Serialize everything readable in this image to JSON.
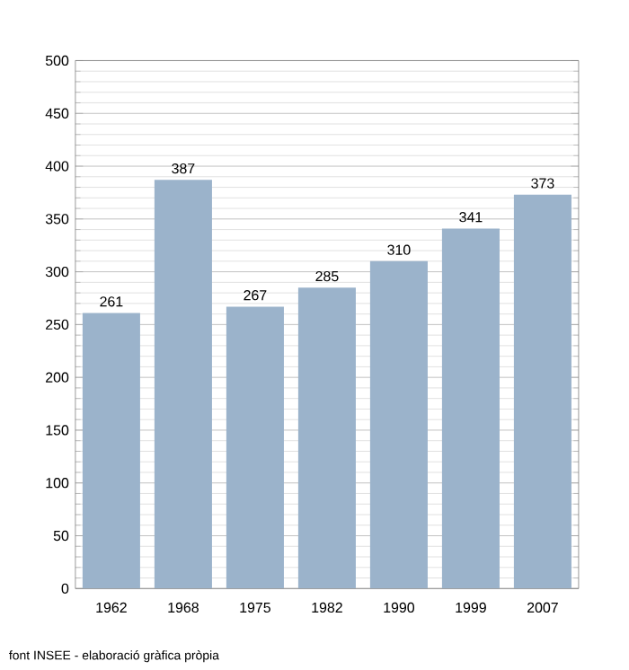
{
  "chart_data": {
    "type": "bar",
    "categories": [
      "1962",
      "1968",
      "1975",
      "1982",
      "1990",
      "1999",
      "2007"
    ],
    "values": [
      261,
      387,
      267,
      285,
      310,
      341,
      373
    ],
    "color": "#9bb3cb",
    "data_labels": true,
    "ylim": [
      0,
      500
    ],
    "yticks": [
      0,
      50,
      100,
      150,
      200,
      250,
      300,
      350,
      400,
      450,
      500
    ],
    "grid": "y",
    "annotations": [
      "font INSEE - elaboració gràfica pròpia"
    ]
  }
}
